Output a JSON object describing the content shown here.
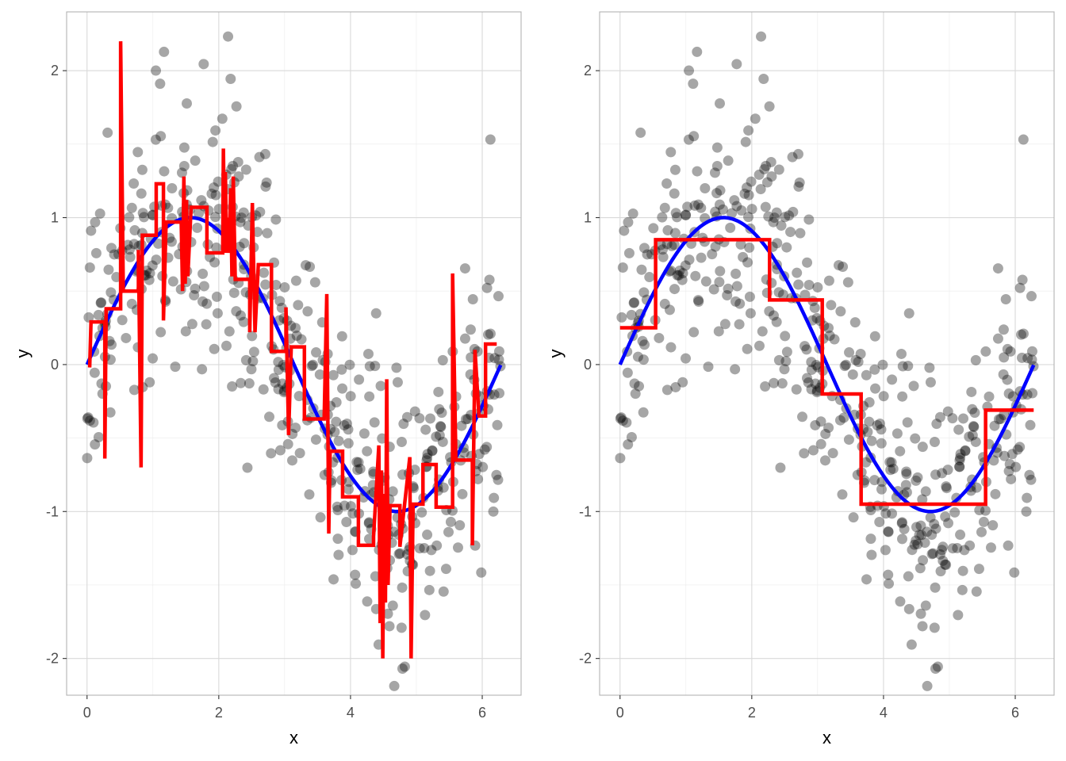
{
  "colors": {
    "points": "#000000",
    "true_curve": "#0000ff",
    "fit_line": "#ff0000",
    "grid": "#d9d9d9",
    "panel_border": "#b3b3b3"
  },
  "chart_data": [
    {
      "type": "scatter",
      "xlabel": "x",
      "ylabel": "y",
      "xlim": [
        -0.31,
        6.59
      ],
      "ylim": [
        -2.25,
        2.4
      ],
      "xticks": [
        0,
        2,
        4,
        6
      ],
      "xtick_labels": [
        "0",
        "2",
        "4",
        "6"
      ],
      "yticks": [
        -2,
        -1,
        0,
        1,
        2
      ],
      "ytick_labels": [
        "-2",
        "-1",
        "0",
        "1",
        "2"
      ],
      "grid": true,
      "legend": "none",
      "series": [
        {
          "kind": "points",
          "seed": 7,
          "n": 500,
          "noise_sd": 0.45,
          "opacity": 0.35
        },
        {
          "kind": "curve",
          "function": "sin",
          "domain": [
            0,
            6.28
          ]
        },
        {
          "kind": "step",
          "points": [
            [
              0.04,
              -0.02
            ],
            [
              0.06,
              0.29
            ],
            [
              0.27,
              0.29
            ],
            [
              0.27,
              -0.64
            ],
            [
              0.29,
              0.38
            ],
            [
              0.51,
              0.38
            ],
            [
              0.51,
              2.2
            ],
            [
              0.55,
              0.5
            ],
            [
              0.78,
              0.5
            ],
            [
              0.78,
              0.78
            ],
            [
              0.82,
              -0.7
            ],
            [
              0.84,
              0.88
            ],
            [
              1.05,
              0.88
            ],
            [
              1.05,
              1.23
            ],
            [
              1.16,
              1.23
            ],
            [
              1.16,
              0.3
            ],
            [
              1.2,
              0.97
            ],
            [
              1.43,
              0.97
            ],
            [
              1.45,
              0.5
            ],
            [
              1.47,
              1.28
            ],
            [
              1.49,
              0.55
            ],
            [
              1.51,
              1.12
            ],
            [
              1.53,
              0.6
            ],
            [
              1.58,
              1.07
            ],
            [
              1.82,
              1.07
            ],
            [
              1.82,
              0.76
            ],
            [
              2.06,
              0.76
            ],
            [
              2.07,
              1.47
            ],
            [
              2.09,
              0.76
            ],
            [
              2.1,
              1.31
            ],
            [
              2.12,
              0.76
            ],
            [
              2.14,
              1.0
            ],
            [
              2.16,
              0.76
            ],
            [
              2.18,
              1.2
            ],
            [
              2.2,
              0.6
            ],
            [
              2.22,
              1.28
            ],
            [
              2.25,
              0.58
            ],
            [
              2.47,
              0.58
            ],
            [
              2.47,
              0.22
            ],
            [
              2.51,
              1.1
            ],
            [
              2.55,
              0.22
            ],
            [
              2.6,
              0.68
            ],
            [
              2.8,
              0.68
            ],
            [
              2.8,
              0.09
            ],
            [
              3.02,
              0.09
            ],
            [
              3.02,
              0.39
            ],
            [
              3.06,
              -0.48
            ],
            [
              3.1,
              0.12
            ],
            [
              3.3,
              0.12
            ],
            [
              3.3,
              -0.37
            ],
            [
              3.6,
              -0.37
            ],
            [
              3.64,
              0.48
            ],
            [
              3.67,
              -1.15
            ],
            [
              3.69,
              -0.59
            ],
            [
              3.88,
              -0.59
            ],
            [
              3.88,
              -0.9
            ],
            [
              4.12,
              -0.9
            ],
            [
              4.12,
              -1.23
            ],
            [
              4.35,
              -1.23
            ],
            [
              4.35,
              -1.17
            ],
            [
              4.43,
              -0.55
            ],
            [
              4.45,
              -1.76
            ],
            [
              4.47,
              -0.72
            ],
            [
              4.49,
              -2.0
            ],
            [
              4.51,
              -0.88
            ],
            [
              4.53,
              -1.62
            ],
            [
              4.55,
              -0.1
            ],
            [
              4.57,
              -1.5
            ],
            [
              4.6,
              -0.96
            ],
            [
              4.75,
              -0.96
            ],
            [
              4.75,
              -1.24
            ],
            [
              4.9,
              -0.63
            ],
            [
              4.92,
              -2.0
            ],
            [
              4.95,
              -0.95
            ],
            [
              5.1,
              -0.95
            ],
            [
              5.1,
              -0.68
            ],
            [
              5.3,
              -0.68
            ],
            [
              5.3,
              -0.97
            ],
            [
              5.55,
              -0.97
            ],
            [
              5.55,
              0.62
            ],
            [
              5.6,
              -0.65
            ],
            [
              5.85,
              -0.65
            ],
            [
              5.85,
              -1.23
            ],
            [
              5.89,
              0.1
            ],
            [
              5.95,
              -0.35
            ],
            [
              6.05,
              -0.35
            ],
            [
              6.05,
              0.14
            ],
            [
              6.22,
              0.14
            ]
          ]
        }
      ]
    },
    {
      "type": "scatter",
      "xlabel": "x",
      "ylabel": "y",
      "xlim": [
        -0.31,
        6.59
      ],
      "ylim": [
        -2.25,
        2.4
      ],
      "xticks": [
        0,
        2,
        4,
        6
      ],
      "xtick_labels": [
        "0",
        "2",
        "4",
        "6"
      ],
      "yticks": [
        -2,
        -1,
        0,
        1,
        2
      ],
      "ytick_labels": [
        "-2",
        "-1",
        "0",
        "1",
        "2"
      ],
      "grid": true,
      "legend": "none",
      "series": [
        {
          "kind": "points",
          "seed": 7,
          "n": 500,
          "noise_sd": 0.45,
          "opacity": 0.35
        },
        {
          "kind": "curve",
          "function": "sin",
          "domain": [
            0,
            6.28
          ]
        },
        {
          "kind": "step",
          "points": [
            [
              0.0,
              0.25
            ],
            [
              0.54,
              0.25
            ],
            [
              0.54,
              0.85
            ],
            [
              2.27,
              0.85
            ],
            [
              2.27,
              0.44
            ],
            [
              3.07,
              0.44
            ],
            [
              3.07,
              -0.2
            ],
            [
              3.66,
              -0.2
            ],
            [
              3.66,
              -0.95
            ],
            [
              5.55,
              -0.95
            ],
            [
              5.55,
              -0.31
            ],
            [
              6.28,
              -0.31
            ]
          ]
        }
      ]
    }
  ]
}
